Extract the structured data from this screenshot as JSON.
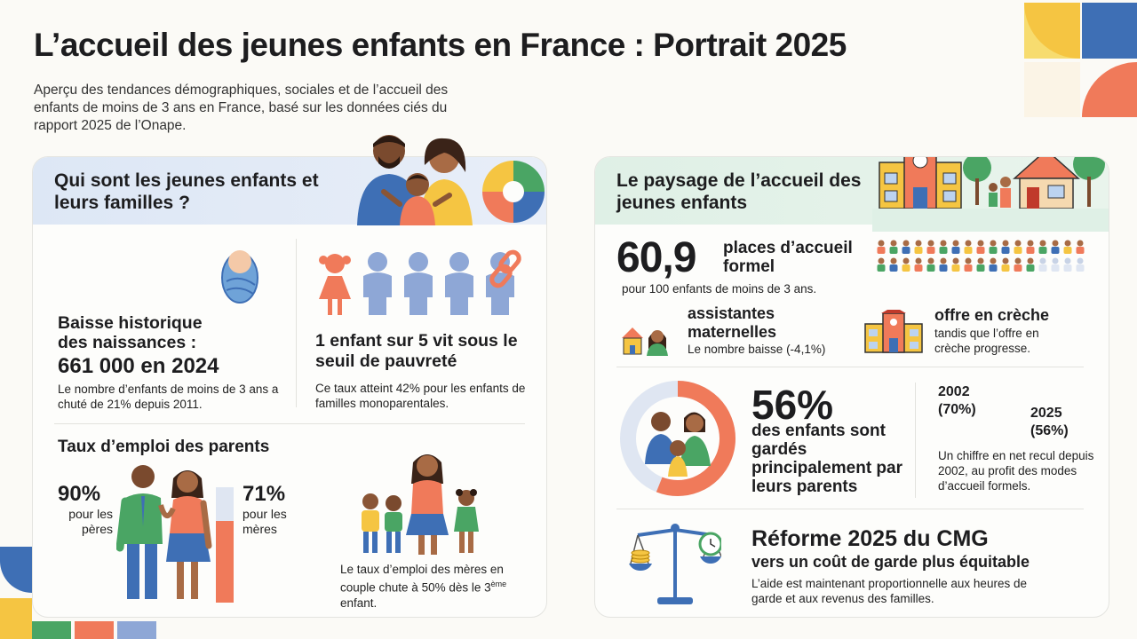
{
  "header": {
    "title": "L’accueil des jeunes enfants en France : Portrait 2025",
    "subtitle": "Aperçu des tendances démographiques, sociales et de l’accueil des enfants de moins de 3 ans en France, basé sur les données ciés du rapport 2025 de l’Onape."
  },
  "left": {
    "title": "Qui sont les jeunes enfants et leurs familles ?",
    "births": {
      "heading": "Baisse historique des naissances :",
      "value": "661 000 en 2024",
      "note": "Le nombre d’enfants de moins de 3 ans a chuté de 21% depuis 2011."
    },
    "poverty": {
      "heading": "1 enfant sur 5 vit sous le seuil de pauvreté",
      "note": "Ce taux atteint 42% pour les enfants de familles monoparentales."
    },
    "employment": {
      "heading": "Taux d’emploi des parents",
      "fathers_pct": "90%",
      "fathers_label": "pour les pères",
      "mothers_pct": "71%",
      "mothers_label": "pour les mères",
      "mothers_value": 71,
      "note_main": "Le taux d’emploi des mères en couple chute à 50% dès le 3",
      "note_sup": "ème",
      "note_end": " enfant."
    }
  },
  "right": {
    "title": "Le paysage de l’accueil des jeunes enfants",
    "places": {
      "value": "60,9",
      "label": "places d’accueil formel",
      "note": "pour 100 enfants de moins de 3 ans."
    },
    "assistantes": {
      "heading": "assistantes maternelles",
      "note": "Le nombre baisse (-4,1%)"
    },
    "creche": {
      "heading": "offre en crèche",
      "note": "tandis que l’offre en crèche progresse."
    },
    "parents": {
      "value": "56%",
      "label": "des enfants sont gardés principalement par leurs parents",
      "donut_value": 56,
      "year1": "2002",
      "year1_pct": "(70%)",
      "year2": "2025",
      "year2_pct": "(56%)",
      "note": "Un chiffre en net recul depuis 2002, au profit des modes d’accueil formels."
    },
    "reform": {
      "heading": "Réforme 2025 du CMG",
      "sub": "vers un coût de garde plus équitable",
      "note": "L’aide est maintenant proportionnelle aux heures de garde et aux revenus des familles."
    }
  },
  "colors": {
    "blue": "#3e6fb5",
    "coral": "#f07a5a",
    "green": "#4aa564",
    "yellow": "#f5c542",
    "lightblue": "#8ea7d6"
  }
}
